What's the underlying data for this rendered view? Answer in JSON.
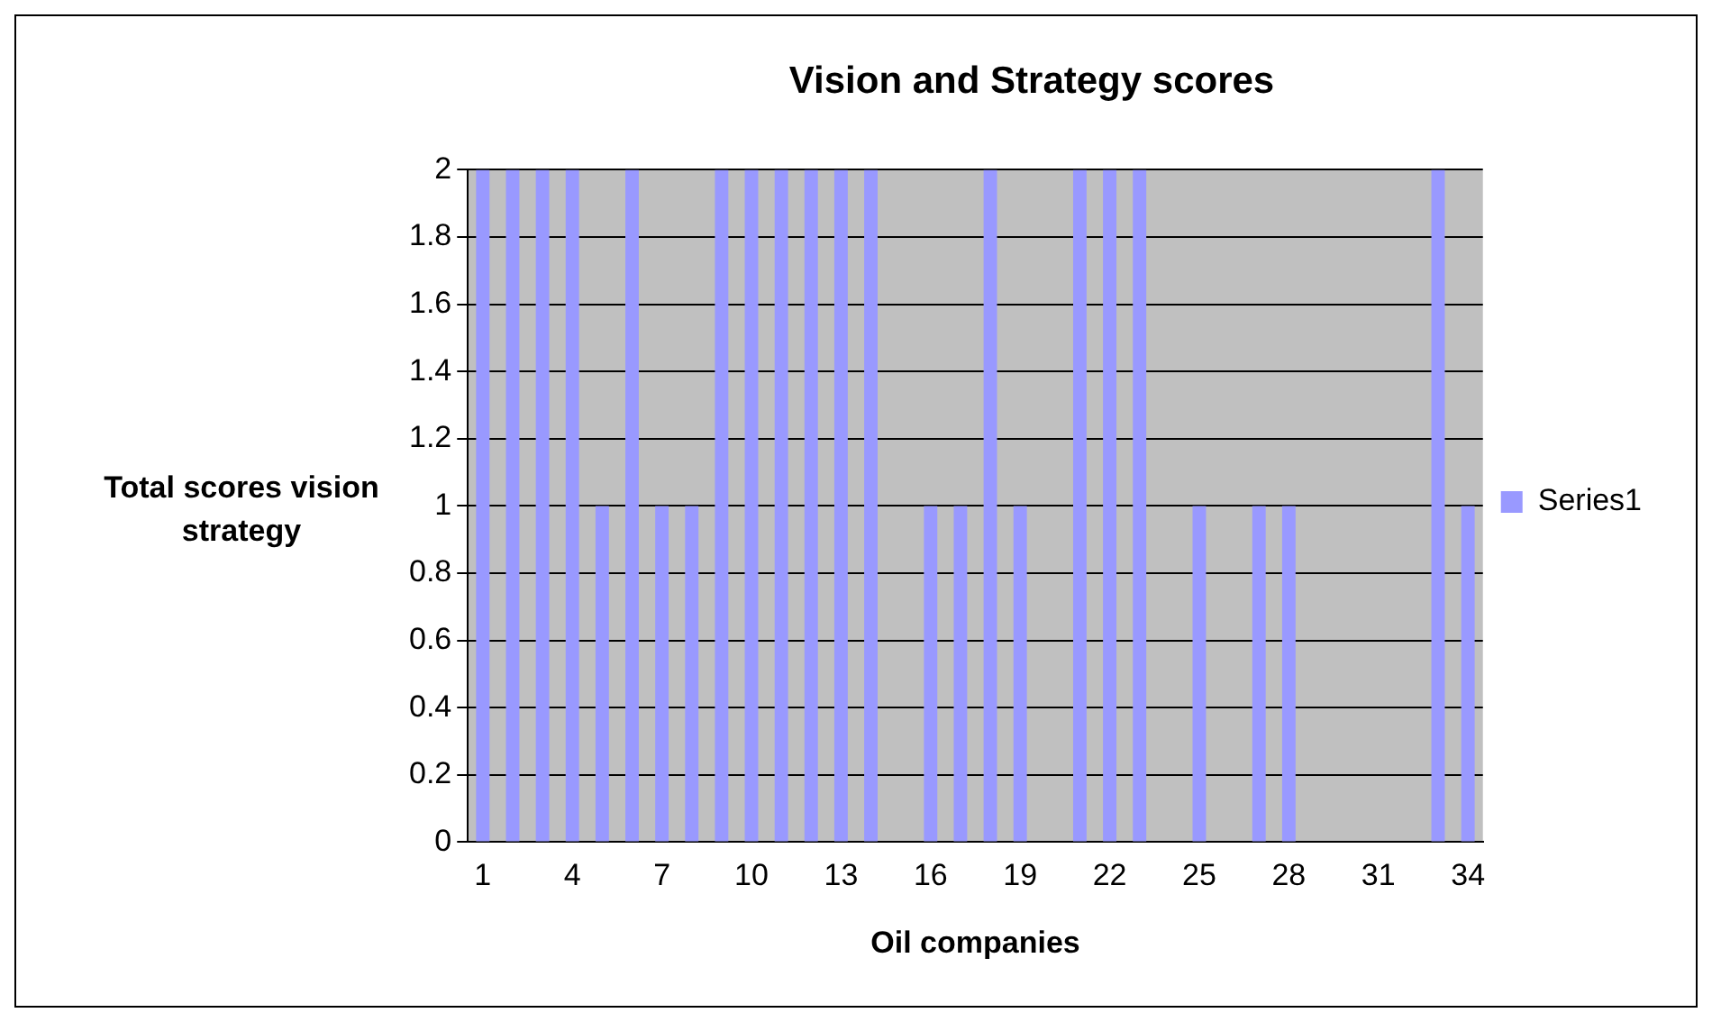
{
  "chart_data": {
    "type": "bar",
    "title": "Vision and Strategy scores",
    "xlabel": "Oil companies",
    "ylabel": "Total scores vision strategy",
    "categories": [
      "1",
      null,
      null,
      "4",
      null,
      null,
      "7",
      null,
      null,
      "10",
      null,
      null,
      "13",
      null,
      null,
      "16",
      null,
      null,
      "19",
      null,
      null,
      "22",
      null,
      null,
      "25",
      null,
      null,
      "28",
      null,
      null,
      "31",
      null,
      null,
      "34"
    ],
    "series": [
      {
        "name": "Series1",
        "color": "#9999ff",
        "values": [
          2,
          2,
          2,
          2,
          1,
          2,
          1,
          1,
          2,
          2,
          2,
          2,
          2,
          2,
          0,
          1,
          1,
          2,
          1,
          0,
          2,
          2,
          2,
          0,
          1,
          0,
          1,
          1,
          0,
          0,
          0,
          0,
          2,
          1
        ]
      }
    ],
    "ylim": [
      0,
      2
    ],
    "yticks": [
      0,
      0.2,
      0.4,
      0.6,
      0.8,
      1,
      1.2,
      1.4,
      1.6,
      1.8,
      2
    ],
    "grid": "y",
    "legend": "right"
  }
}
